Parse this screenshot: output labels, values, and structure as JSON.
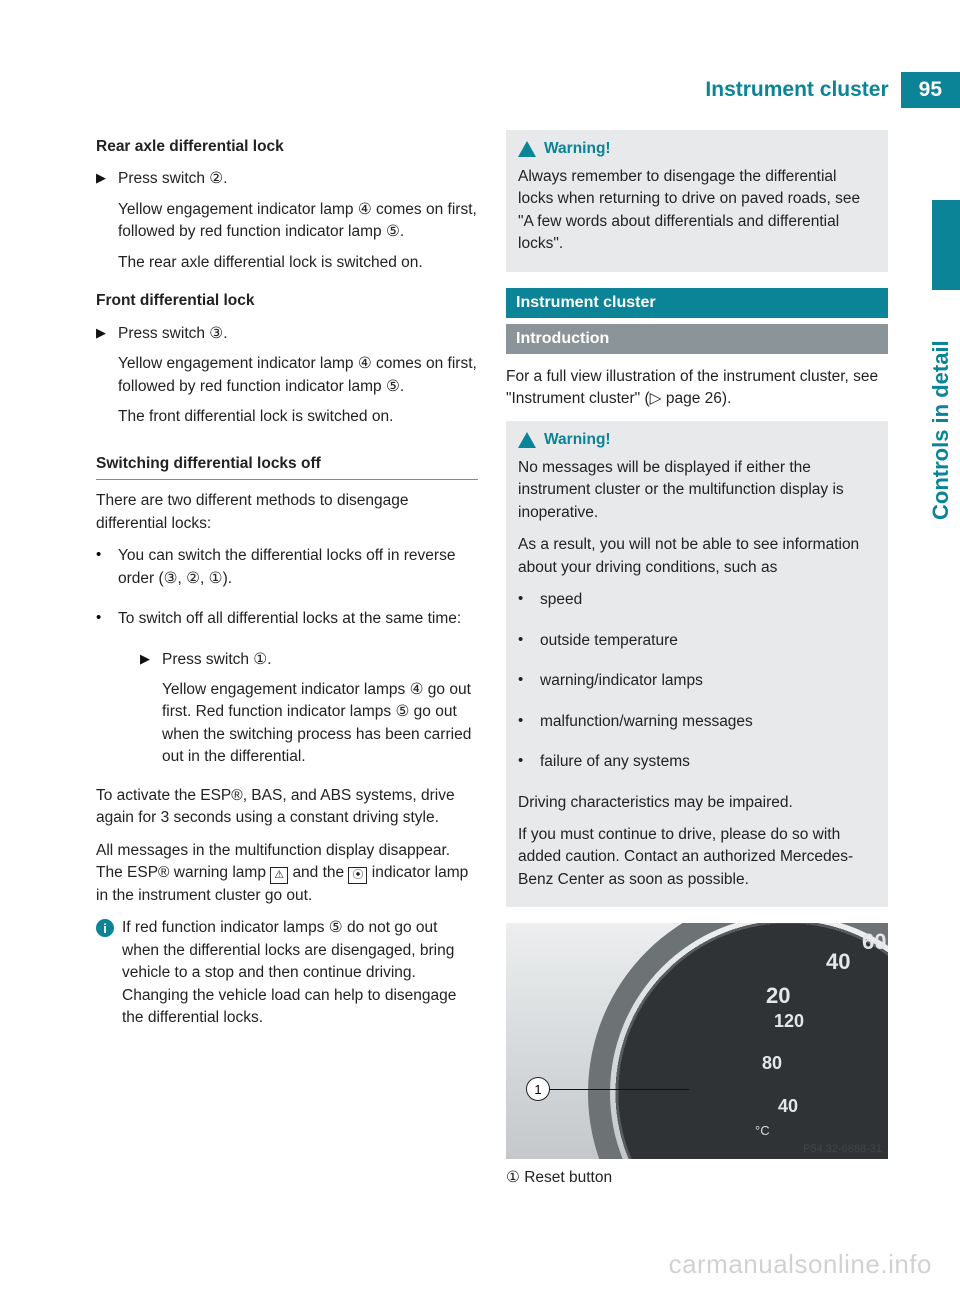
{
  "header": {
    "title": "Instrument cluster",
    "page_number": "95"
  },
  "side_label": "Controls in detail",
  "colors": {
    "teal": "#0b8497",
    "gray_bar": "#8b9499",
    "warn_bg": "#e7e9ea",
    "text": "#222222"
  },
  "left": {
    "h_rear": "Rear axle differential lock",
    "rear_step_lead": "Press switch ②.",
    "rear_step_body1": "Yellow engagement indicator lamp ④ comes on first, followed by red function indicator lamp ⑤.",
    "rear_step_body2": "The rear axle differential lock is switched on.",
    "h_front": "Front differential lock",
    "front_step_lead": "Press switch ③.",
    "front_step_body1": "Yellow engagement indicator lamp ④ comes on first, followed by red function indicator lamp ⑤.",
    "front_step_body2": "The front differential lock is switched on.",
    "h_switch_off": "Switching differential locks off",
    "switch_off_intro": "There are two different methods to disengage differential locks:",
    "bullet1": "You can switch the differential locks off in reverse order (③, ②, ①).",
    "bullet2": "To switch off all differential locks at the same time:",
    "sub_step_lead": "Press switch ①.",
    "sub_step_body": "Yellow engagement indicator lamps ④ go out first. Red function indicator lamps ⑤ go out when the switching process has been carried out in the differential.",
    "esp1": "To activate the ESP®, BAS, and ABS systems, drive again for 3 seconds using a constant driving style.",
    "esp2_a": "All messages in the multifunction display disappear. The ESP® warning lamp ",
    "esp2_rect1": "⚠",
    "esp2_b": " and the ",
    "esp2_rect2": "⦿",
    "esp2_c": " indicator lamp in the instrument cluster go out.",
    "info": "If red function indicator lamps ⑤ do not go out when the differential locks are disengaged, bring vehicle to a stop and then continue driving. Changing the vehicle load can help to disengage the differential locks."
  },
  "right": {
    "warn1_title": "Warning!",
    "warn1_body": "Always remember to disengage the differential locks when returning to drive on paved roads, see \"A few words about differentials and differential locks\".",
    "bar_section": "Instrument cluster",
    "bar_sub": "Introduction",
    "intro": "For a full view illustration of the instrument cluster, see \"Instrument cluster\" (▷ page 26).",
    "warn2_title": "Warning!",
    "warn2_p1": "No messages will be displayed if either the instrument cluster or the multifunction display is inoperative.",
    "warn2_p2": "As a result, you will not be able to see information about your driving conditions, such as",
    "warn2_bullets": [
      "speed",
      "outside temperature",
      "warning/indicator lamps",
      "malfunction/warning messages",
      "failure of any systems"
    ],
    "warn2_p3": "Driving characteristics may be impaired.",
    "warn2_p4": "If you must continue to drive, please do so with added caution. Contact an authorized Mercedes-Benz Center as soon as possible.",
    "figure": {
      "callout": "1",
      "caption_id": "P54.32-6888-31",
      "ticks": {
        "t20": "20",
        "t40a": "40",
        "t60": "60",
        "t80": "80",
        "t120": "120",
        "t40b": "40",
        "temp": "°C"
      }
    },
    "legend": "①  Reset button"
  },
  "watermark": "carmanualsonline.info"
}
